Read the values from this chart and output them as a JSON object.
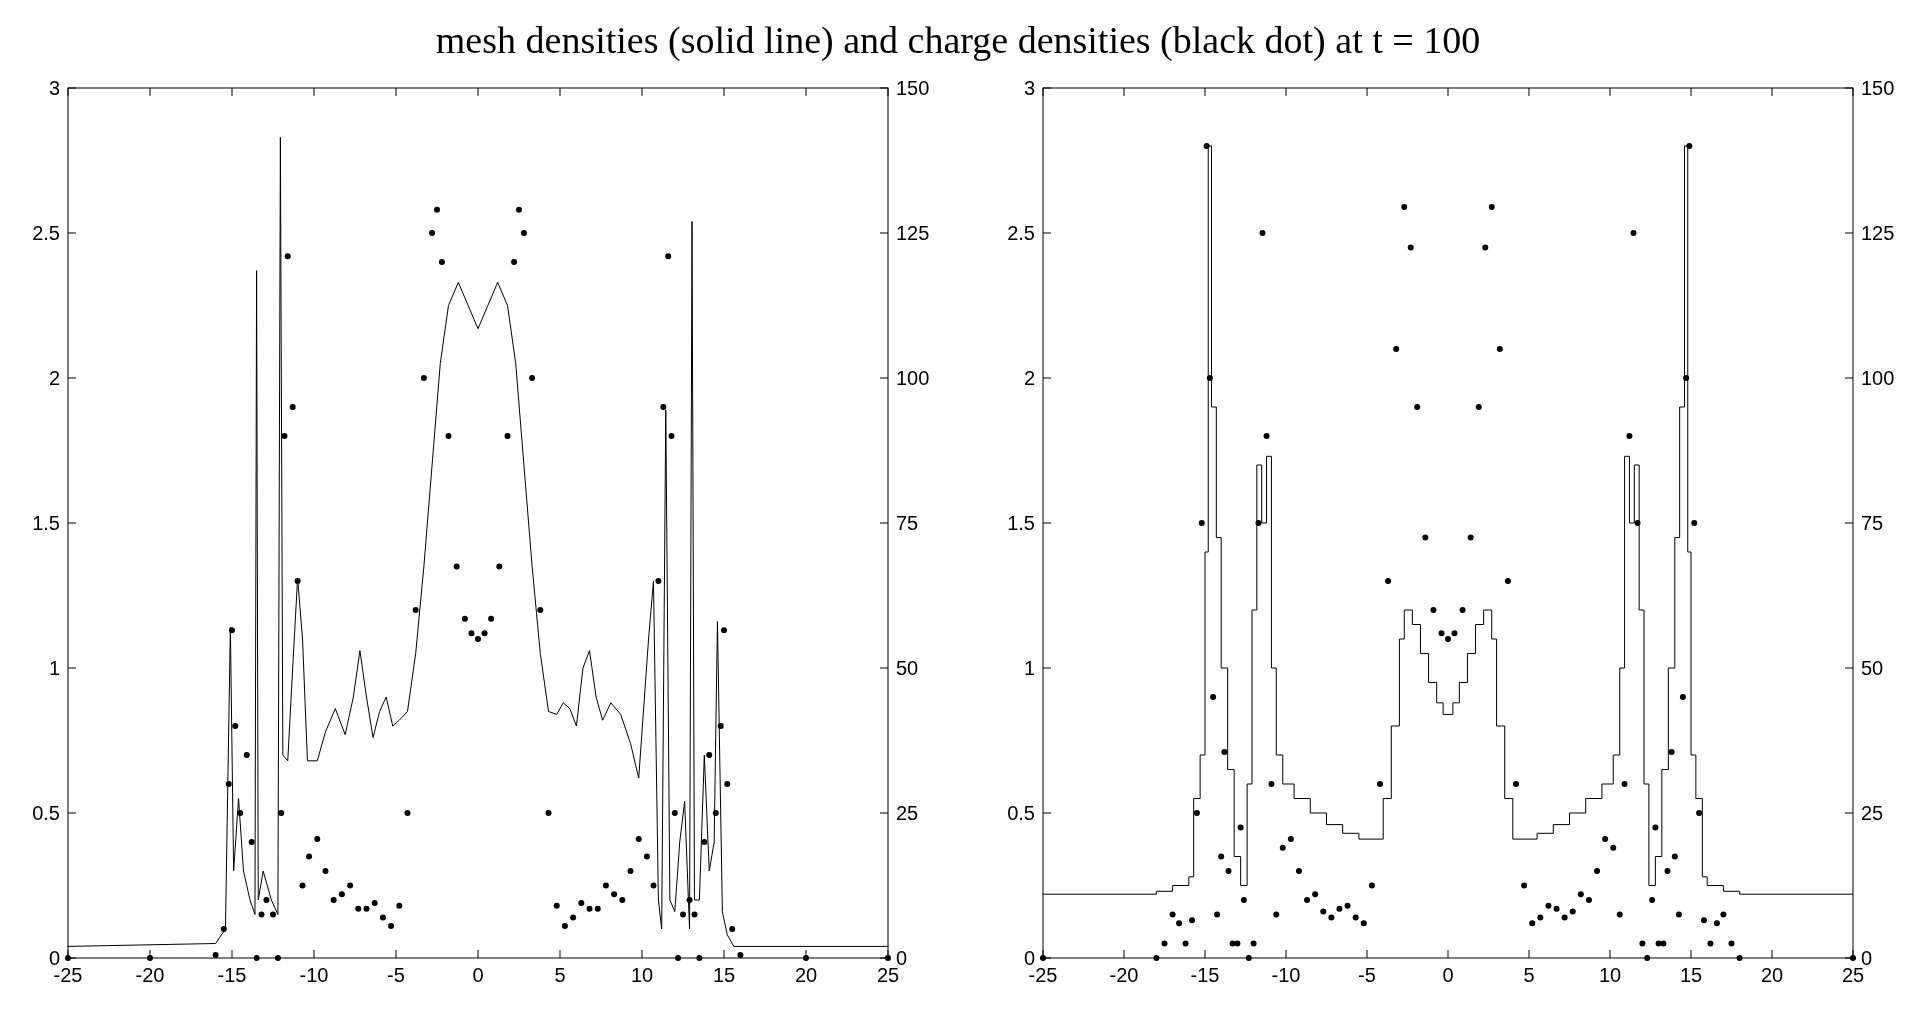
{
  "chart_data": [
    {
      "type": "line",
      "title": "mesh densities (solid line) and charge densities (black dot) at t = 100",
      "xlim": [
        -25,
        25
      ],
      "xticks": [
        -25,
        -20,
        -15,
        -10,
        -5,
        0,
        5,
        10,
        15,
        20,
        25
      ],
      "ylim": [
        0,
        3
      ],
      "yticks": [
        0,
        0.5,
        1,
        1.5,
        2,
        2.5,
        3
      ],
      "y2lim": [
        0,
        150
      ],
      "y2ticks": [
        0,
        25,
        50,
        75,
        100,
        125,
        150
      ],
      "series": [
        {
          "type": "scatter",
          "marker": "circle",
          "color": "#000000",
          "axis": "y",
          "x": [
            -25,
            -20,
            -16,
            -15.5,
            -15.2,
            -15,
            -14.8,
            -14.5,
            -14.1,
            -13.8,
            -13.5,
            -13.2,
            -12.9,
            -12.5,
            -12.2,
            -12,
            -11.8,
            -11.6,
            -11.3,
            -11,
            -10.7,
            -10.3,
            -9.8,
            -9.3,
            -8.8,
            -8.3,
            -7.8,
            -7.3,
            -6.8,
            -6.3,
            -5.8,
            -5.3,
            -4.8,
            -4.3,
            -3.8,
            -3.3,
            -2.8,
            -2.5,
            -2.2,
            -1.8,
            -1.3,
            -0.8,
            -0.4,
            0,
            0.4,
            0.8,
            1.3,
            1.8,
            2.2,
            2.5,
            2.8,
            3.3,
            3.8,
            4.3,
            4.8,
            5.3,
            5.8,
            6.3,
            6.8,
            7.3,
            7.8,
            8.3,
            8.8,
            9.3,
            9.8,
            10.3,
            10.7,
            11,
            11.3,
            11.6,
            11.8,
            12,
            12.2,
            12.5,
            12.9,
            13.2,
            13.5,
            13.8,
            14.1,
            14.5,
            14.8,
            15,
            15.2,
            15.5,
            16,
            20,
            25
          ],
          "values": [
            0,
            0,
            0.01,
            0.1,
            0.6,
            1.13,
            0.8,
            0.5,
            0.7,
            0.4,
            0,
            0.15,
            0.2,
            0.15,
            0,
            0.5,
            1.8,
            2.42,
            1.9,
            1.3,
            0.25,
            0.35,
            0.41,
            0.3,
            0.2,
            0.22,
            0.25,
            0.17,
            0.17,
            0.19,
            0.14,
            0.11,
            0.18,
            0.5,
            1.2,
            2.0,
            2.5,
            2.58,
            2.4,
            1.8,
            1.35,
            1.17,
            1.12,
            1.1,
            1.12,
            1.17,
            1.35,
            1.8,
            2.4,
            2.58,
            2.5,
            2.0,
            1.2,
            0.5,
            0.18,
            0.11,
            0.14,
            0.19,
            0.17,
            0.17,
            0.25,
            0.22,
            0.2,
            0.3,
            0.41,
            0.35,
            0.25,
            1.3,
            1.9,
            2.42,
            1.8,
            0.5,
            0,
            0.15,
            0.2,
            0.15,
            0,
            0.4,
            0.7,
            0.5,
            0.8,
            1.13,
            0.6,
            0.1,
            0.01,
            0,
            0
          ]
        },
        {
          "color": "#000000",
          "axis": "y2",
          "x": [
            -25,
            -16,
            -15.4,
            -15.1,
            -14.9,
            -14.6,
            -14.3,
            -13.9,
            -13.6,
            -13.5,
            -13.4,
            -13.1,
            -12.6,
            -12.2,
            -12.05,
            -11.9,
            -11.6,
            -11.3,
            -11,
            -10.7,
            -10.4,
            -9.8,
            -9.3,
            -8.7,
            -8.1,
            -7.6,
            -7.2,
            -6.8,
            -6.4,
            -6,
            -5.6,
            -5.2,
            -4.8,
            -4.3,
            -3.8,
            -3.3,
            -2.8,
            -2.3,
            -1.8,
            -1.2,
            -0.6,
            0,
            0.6,
            1.2,
            1.8,
            2.3,
            2.8,
            3.3,
            3.8,
            4.3,
            4.8,
            5.2,
            5.6,
            6,
            6.4,
            6.8,
            7.2,
            7.6,
            8.1,
            8.7,
            9.3,
            9.8,
            10.4,
            10.7,
            11,
            11.2,
            11.45,
            11.7,
            12,
            12.3,
            12.6,
            12.9,
            13.05,
            13.2,
            13.5,
            13.8,
            14.1,
            14.4,
            14.6,
            14.9,
            15.2,
            15.6,
            25
          ],
          "values": [
            2,
            2.5,
            5,
            57,
            15,
            27.5,
            15,
            10,
            7.5,
            118.5,
            10,
            15,
            10,
            7.5,
            141.5,
            35,
            34,
            50,
            65.5,
            55,
            34,
            34,
            39,
            43,
            38.5,
            45,
            53,
            45,
            38,
            42.5,
            45,
            40,
            41,
            42.5,
            52.5,
            67.5,
            85,
            102.5,
            112.5,
            116.5,
            112.5,
            108.5,
            112.5,
            116.5,
            112.5,
            102.5,
            85,
            67.5,
            52.5,
            42.5,
            42,
            44,
            43,
            40,
            50,
            53,
            45,
            41,
            44,
            42,
            37,
            31,
            55,
            65,
            10,
            5,
            94.5,
            10,
            8,
            20,
            27,
            5,
            127,
            10,
            10,
            35,
            15,
            20,
            58,
            8,
            4,
            2,
            2
          ]
        }
      ]
    },
    {
      "type": "step",
      "xlim": [
        -25,
        25
      ],
      "xticks": [
        -25,
        -20,
        -15,
        -10,
        -5,
        0,
        5,
        10,
        15,
        20,
        25
      ],
      "ylim": [
        0,
        3
      ],
      "yticks": [
        0,
        0.5,
        1,
        1.5,
        2,
        2.5,
        3
      ],
      "y2lim": [
        0,
        150
      ],
      "y2ticks": [
        0,
        25,
        50,
        75,
        100,
        125,
        150
      ],
      "series": [
        {
          "type": "scatter",
          "marker": "circle",
          "color": "#000000",
          "axis": "y",
          "x": [
            -25,
            -18,
            -17.5,
            -17,
            -16.6,
            -16.2,
            -15.8,
            -15.5,
            -15.2,
            -14.9,
            -14.7,
            -14.5,
            -14.25,
            -14,
            -13.8,
            -13.55,
            -13.3,
            -13,
            -12.8,
            -12.6,
            -12.3,
            -12,
            -11.7,
            -11.45,
            -11.2,
            -10.9,
            -10.6,
            -10.2,
            -9.7,
            -9.2,
            -8.7,
            -8.2,
            -7.7,
            -7.2,
            -6.7,
            -6.2,
            -5.7,
            -5.2,
            -4.7,
            -4.2,
            -3.7,
            -3.2,
            -2.7,
            -2.3,
            -1.9,
            -1.4,
            -0.9,
            -0.4,
            0,
            0.4,
            0.9,
            1.4,
            1.9,
            2.3,
            2.7,
            3.2,
            3.7,
            4.2,
            4.7,
            5.2,
            5.7,
            6.2,
            6.7,
            7.2,
            7.7,
            8.2,
            8.7,
            9.2,
            9.7,
            10.2,
            10.6,
            10.9,
            11.2,
            11.45,
            11.7,
            12,
            12.3,
            12.6,
            12.8,
            13,
            13.3,
            13.55,
            13.8,
            14,
            14.25,
            14.5,
            14.7,
            14.9,
            15.2,
            15.5,
            15.8,
            16.2,
            16.6,
            17,
            17.5,
            18,
            25
          ],
          "values": [
            0,
            0,
            0.05,
            0.15,
            0.12,
            0.05,
            0.13,
            0.5,
            1.5,
            2.8,
            2.0,
            0.9,
            0.15,
            0.35,
            0.71,
            0.3,
            0.05,
            0.05,
            0.45,
            0.2,
            0,
            0.05,
            1.5,
            2.5,
            1.8,
            0.6,
            0.15,
            0.38,
            0.41,
            0.3,
            0.2,
            0.22,
            0.16,
            0.14,
            0.17,
            0.18,
            0.14,
            0.12,
            0.25,
            0.6,
            1.3,
            2.1,
            2.59,
            2.45,
            1.9,
            1.45,
            1.2,
            1.12,
            1.1,
            1.12,
            1.2,
            1.45,
            1.9,
            2.45,
            2.59,
            2.1,
            1.3,
            0.6,
            0.25,
            0.12,
            0.14,
            0.18,
            0.17,
            0.14,
            0.16,
            0.22,
            0.2,
            0.3,
            0.41,
            0.38,
            0.15,
            0.6,
            1.8,
            2.5,
            1.5,
            0.05,
            0,
            0.2,
            0.45,
            0.05,
            0.05,
            0.3,
            0.71,
            0.35,
            0.15,
            0.9,
            2.0,
            2.8,
            1.5,
            0.5,
            0.13,
            0.05,
            0.12,
            0.15,
            0.05,
            0,
            0
          ]
        },
        {
          "color": "#000000",
          "axis": "y2",
          "x": [
            -25,
            -18,
            -17,
            -16,
            -15.7,
            -15.3,
            -15,
            -14.8,
            -14.6,
            -14.3,
            -14,
            -13.6,
            -13.2,
            -12.8,
            -12.4,
            -12.1,
            -11.8,
            -11.5,
            -11.2,
            -10.9,
            -10.6,
            -10.2,
            -9.5,
            -8.5,
            -7.5,
            -6.5,
            -5.5,
            -4.5,
            -4,
            -3.5,
            -3,
            -2.7,
            -2.2,
            -1.7,
            -1.2,
            -0.7,
            -0.3,
            0.3,
            0.7,
            1.2,
            1.7,
            2.2,
            2.7,
            3,
            3.5,
            4,
            4.5,
            5.5,
            6.5,
            7.5,
            8.5,
            9.5,
            10.2,
            10.6,
            10.9,
            11.2,
            11.5,
            11.8,
            12.1,
            12.4,
            12.8,
            13.2,
            13.6,
            14,
            14.3,
            14.6,
            14.8,
            15,
            15.3,
            15.7,
            16,
            17,
            18,
            25
          ],
          "values": [
            11,
            11.5,
            12.5,
            14,
            27.5,
            35,
            70,
            140,
            95,
            72.5,
            50,
            32.5,
            17.5,
            12.5,
            30,
            60,
            85,
            75,
            86.5,
            50,
            35,
            30,
            27.5,
            25,
            23,
            21.5,
            20.5,
            20.5,
            27.5,
            40,
            55,
            60,
            57.5,
            52.5,
            47.5,
            44,
            42,
            44,
            47.5,
            52.5,
            57.5,
            60,
            55,
            40,
            27.5,
            20.5,
            20.5,
            21.5,
            23,
            25,
            27.5,
            30,
            35,
            50,
            86.5,
            75,
            85,
            60,
            30,
            12.5,
            17.5,
            32.5,
            50,
            72.5,
            95,
            140,
            70,
            35,
            27.5,
            14,
            12.5,
            11.5,
            11,
            11
          ]
        }
      ]
    }
  ]
}
